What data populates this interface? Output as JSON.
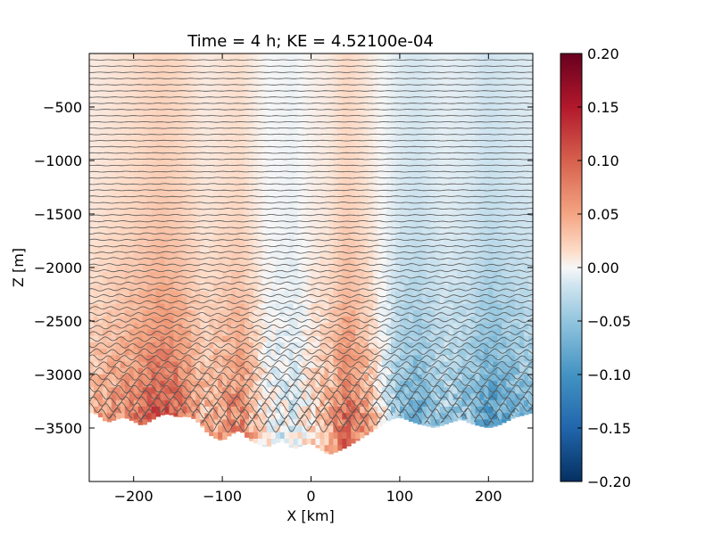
{
  "chart_data": {
    "type": "heatmap",
    "title": "Time = 4 h; KE = 4.52100e-04",
    "xlabel": "X [km]",
    "ylabel": "Z [m]",
    "xlim": [
      -250,
      250
    ],
    "ylim": [
      -4000,
      0
    ],
    "x_ticks": [
      {
        "value": -200,
        "label": "−200"
      },
      {
        "value": -100,
        "label": "−100"
      },
      {
        "value": 0,
        "label": "0"
      },
      {
        "value": 100,
        "label": "100"
      },
      {
        "value": 200,
        "label": "200"
      }
    ],
    "y_ticks": [
      {
        "value": -500,
        "label": "−500"
      },
      {
        "value": -1000,
        "label": "−1000"
      },
      {
        "value": -1500,
        "label": "−1500"
      },
      {
        "value": -2000,
        "label": "−2000"
      },
      {
        "value": -2500,
        "label": "−2500"
      },
      {
        "value": -3000,
        "label": "−3000"
      },
      {
        "value": -3500,
        "label": "−3500"
      }
    ],
    "colorbar": {
      "colormap": "RdBu_r",
      "range": [
        -0.2,
        0.2
      ],
      "ticks": [
        {
          "value": 0.2,
          "label": "0.20"
        },
        {
          "value": 0.15,
          "label": "0.15"
        },
        {
          "value": 0.1,
          "label": "0.10"
        },
        {
          "value": 0.05,
          "label": "0.05"
        },
        {
          "value": 0.0,
          "label": "0.00"
        },
        {
          "value": -0.05,
          "label": "−0.05"
        },
        {
          "value": -0.1,
          "label": "−0.10"
        },
        {
          "value": -0.15,
          "label": "−0.15"
        },
        {
          "value": -0.2,
          "label": "−0.20"
        }
      ]
    },
    "bathymetry_depth_m": {
      "x": [
        -250,
        -240,
        -230,
        -220,
        -210,
        -200,
        -190,
        -180,
        -170,
        -160,
        -150,
        -140,
        -130,
        -120,
        -110,
        -100,
        -90,
        -80,
        -70,
        -60,
        -50,
        -40,
        -30,
        -20,
        -10,
        0,
        10,
        20,
        30,
        40,
        50,
        60,
        70,
        80,
        90,
        100,
        110,
        120,
        130,
        140,
        150,
        160,
        170,
        180,
        190,
        200,
        210,
        220,
        230,
        240,
        250
      ],
      "depth": [
        -3350,
        -3380,
        -3450,
        -3420,
        -3400,
        -3440,
        -3480,
        -3430,
        -3380,
        -3370,
        -3400,
        -3390,
        -3420,
        -3520,
        -3590,
        -3620,
        -3560,
        -3520,
        -3610,
        -3650,
        -3680,
        -3640,
        -3620,
        -3700,
        -3660,
        -3640,
        -3700,
        -3750,
        -3720,
        -3680,
        -3630,
        -3580,
        -3520,
        -3470,
        -3420,
        -3400,
        -3430,
        -3460,
        -3480,
        -3500,
        -3470,
        -3440,
        -3420,
        -3460,
        -3480,
        -3500,
        -3480,
        -3440,
        -3400,
        -3380,
        -3360
      ]
    },
    "velocity_profile": {
      "x": [
        -250,
        -200,
        -170,
        -150,
        -120,
        -100,
        -80,
        -50,
        -20,
        0,
        20,
        40,
        60,
        80,
        100,
        120,
        150,
        180,
        200,
        220,
        250
      ],
      "value": [
        0.02,
        0.04,
        0.06,
        0.05,
        0.02,
        0.03,
        0.04,
        0.0,
        -0.01,
        0.01,
        0.02,
        0.05,
        0.03,
        0.0,
        -0.03,
        -0.04,
        -0.02,
        -0.03,
        -0.05,
        -0.04,
        -0.03
      ]
    },
    "contour_count": 60
  }
}
